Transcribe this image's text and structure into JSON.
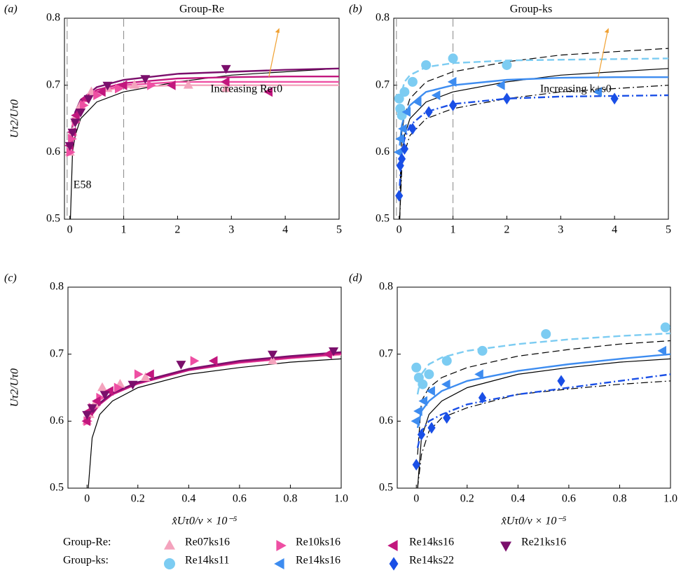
{
  "chart_data": [
    {
      "type": "scatter",
      "panel_label": "(a)",
      "title": "Group-Re",
      "ylabel": "Uτ2/Uτ0",
      "xlim": [
        -0.1,
        5
      ],
      "ylim": [
        0.5,
        0.8
      ],
      "xticks": [
        0,
        1,
        2,
        3,
        4,
        5
      ],
      "yticks": [
        0.5,
        0.6,
        0.7,
        0.8
      ],
      "vlines": [
        -0.05,
        1
      ],
      "series": [
        {
          "color": "#f4a3bd",
          "marker": "triangle-up",
          "x": [
            0,
            0.05,
            0.1,
            0.2,
            0.4,
            0.7,
            1.2,
            2.2,
            2.9
          ],
          "values": [
            0.6,
            0.63,
            0.65,
            0.67,
            0.69,
            0.695,
            0.7,
            0.7,
            0.695
          ]
        },
        {
          "color": "#ee4fa3",
          "marker": "triangle-right",
          "x": [
            0,
            0.03,
            0.1,
            0.25,
            0.5,
            0.9,
            1.5
          ],
          "values": [
            0.6,
            0.62,
            0.645,
            0.67,
            0.685,
            0.695,
            0.7
          ]
        },
        {
          "color": "#c2177e",
          "marker": "triangle-left",
          "x": [
            0,
            0.05,
            0.12,
            0.3,
            0.6,
            1.0,
            1.9,
            2.9,
            3.7
          ],
          "values": [
            0.61,
            0.63,
            0.655,
            0.68,
            0.69,
            0.7,
            0.7,
            0.705,
            0.69
          ]
        },
        {
          "color": "#7b0f6c",
          "marker": "triangle-down",
          "x": [
            0,
            0.05,
            0.1,
            0.2,
            0.35,
            0.7,
            1.4,
            2.9
          ],
          "values": [
            0.61,
            0.63,
            0.645,
            0.66,
            0.68,
            0.7,
            0.71,
            0.725
          ]
        }
      ],
      "curves": [
        {
          "color": "#000000",
          "dash": "solid",
          "x": [
            0.01,
            0.05,
            0.1,
            0.2,
            0.5,
            1,
            2,
            3,
            4,
            5
          ],
          "values": [
            0.5,
            0.6,
            0.625,
            0.65,
            0.675,
            0.69,
            0.705,
            0.715,
            0.72,
            0.725
          ]
        },
        {
          "color": "#f4a3bd",
          "dash": "solid",
          "x": [
            0.01,
            0.05,
            0.1,
            0.2,
            0.5,
            1,
            2,
            3,
            4,
            5
          ],
          "values": [
            0.61,
            0.64,
            0.655,
            0.67,
            0.69,
            0.697,
            0.7,
            0.7,
            0.7,
            0.7
          ]
        },
        {
          "color": "#ee4fa3",
          "dash": "solid",
          "x": [
            0.01,
            0.05,
            0.1,
            0.2,
            0.5,
            1,
            2,
            3,
            4,
            5
          ],
          "values": [
            0.61,
            0.64,
            0.655,
            0.672,
            0.69,
            0.7,
            0.705,
            0.705,
            0.705,
            0.705
          ]
        },
        {
          "color": "#c2177e",
          "dash": "solid",
          "x": [
            0.01,
            0.05,
            0.1,
            0.2,
            0.5,
            1,
            2,
            3,
            4,
            5
          ],
          "values": [
            0.61,
            0.64,
            0.657,
            0.675,
            0.693,
            0.703,
            0.71,
            0.712,
            0.713,
            0.713
          ]
        },
        {
          "color": "#7b0f6c",
          "dash": "solid",
          "x": [
            0.01,
            0.05,
            0.1,
            0.2,
            0.5,
            1,
            2,
            3,
            4,
            5
          ],
          "values": [
            0.61,
            0.64,
            0.66,
            0.678,
            0.697,
            0.708,
            0.717,
            0.72,
            0.723,
            0.725
          ]
        }
      ],
      "annotations": [
        {
          "text": "Increasing Reτ0",
          "color": "#f0a030"
        },
        {
          "text": "E58",
          "color": "#000000"
        }
      ]
    },
    {
      "type": "scatter",
      "panel_label": "(b)",
      "title": "Group-ks",
      "xlim": [
        -0.1,
        5
      ],
      "ylim": [
        0.5,
        0.8
      ],
      "xticks": [
        0,
        1,
        2,
        3,
        4,
        5
      ],
      "yticks": [
        0.5,
        0.6,
        0.7,
        0.8
      ],
      "vlines": [
        -0.05,
        1
      ],
      "series": [
        {
          "color": "#7cccf2",
          "marker": "circle",
          "x": [
            0,
            0.02,
            0.05,
            0.1,
            0.25,
            0.5,
            1.0,
            2.0
          ],
          "values": [
            0.68,
            0.665,
            0.655,
            0.69,
            0.705,
            0.73,
            0.74,
            0.73
          ]
        },
        {
          "color": "#3d8cf0",
          "marker": "triangle-left",
          "x": [
            0,
            0.03,
            0.08,
            0.15,
            0.35,
            0.7,
            1.0,
            1.9,
            3.7
          ],
          "values": [
            0.6,
            0.62,
            0.635,
            0.66,
            0.675,
            0.685,
            0.705,
            0.7,
            0.69
          ]
        },
        {
          "color": "#1a4fe6",
          "marker": "diamond",
          "x": [
            0,
            0.02,
            0.05,
            0.1,
            0.25,
            0.55,
            1.0,
            2.0,
            4.0
          ],
          "values": [
            0.535,
            0.58,
            0.59,
            0.605,
            0.635,
            0.66,
            0.67,
            0.68,
            0.68
          ]
        }
      ],
      "curves": [
        {
          "color": "#000000",
          "dash": "dashed",
          "x": [
            0.01,
            0.05,
            0.1,
            0.2,
            0.5,
            1,
            2,
            3,
            4,
            5
          ],
          "values": [
            0.53,
            0.63,
            0.655,
            0.68,
            0.705,
            0.72,
            0.735,
            0.745,
            0.75,
            0.755
          ]
        },
        {
          "color": "#000000",
          "dash": "solid",
          "x": [
            0.01,
            0.05,
            0.1,
            0.2,
            0.5,
            1,
            2,
            3,
            4,
            5
          ],
          "values": [
            0.5,
            0.6,
            0.625,
            0.65,
            0.675,
            0.69,
            0.705,
            0.715,
            0.72,
            0.725
          ]
        },
        {
          "color": "#000000",
          "dash": "dashdot",
          "x": [
            0.01,
            0.05,
            0.1,
            0.2,
            0.5,
            1,
            2,
            3,
            4,
            5
          ],
          "values": [
            0.5,
            0.575,
            0.6,
            0.625,
            0.65,
            0.665,
            0.68,
            0.69,
            0.695,
            0.7
          ]
        },
        {
          "color": "#7cccf2",
          "dash": "dashed",
          "x": [
            0.01,
            0.05,
            0.1,
            0.2,
            0.5,
            1,
            2,
            3,
            4,
            5
          ],
          "values": [
            0.66,
            0.69,
            0.705,
            0.715,
            0.727,
            0.733,
            0.737,
            0.738,
            0.739,
            0.74
          ]
        },
        {
          "color": "#3d8cf0",
          "dash": "solid",
          "x": [
            0.01,
            0.05,
            0.1,
            0.2,
            0.5,
            1,
            2,
            3,
            4,
            5
          ],
          "values": [
            0.61,
            0.64,
            0.655,
            0.67,
            0.69,
            0.7,
            0.708,
            0.711,
            0.712,
            0.712
          ]
        },
        {
          "color": "#1a4fe6",
          "dash": "dashdot",
          "x": [
            0.01,
            0.05,
            0.1,
            0.2,
            0.5,
            1,
            2,
            3,
            4,
            5
          ],
          "values": [
            0.55,
            0.6,
            0.62,
            0.64,
            0.66,
            0.672,
            0.68,
            0.683,
            0.684,
            0.685
          ]
        }
      ],
      "annotations": [
        {
          "text": "Increasing k+s0",
          "color": "#f0a030"
        }
      ]
    },
    {
      "type": "scatter",
      "panel_label": "(c)",
      "ylabel": "Uτ2/Uτ0",
      "xlabel": "x̂Uτ0/ν × 10⁻⁵",
      "xlim": [
        -0.075,
        1
      ],
      "ylim": [
        0.5,
        0.8
      ],
      "xticks": [
        0,
        0.2,
        0.4,
        0.6,
        0.8,
        {
          "value": 1,
          "label": "1.0"
        }
      ],
      "yticks": [
        0.5,
        0.6,
        0.7,
        0.8
      ],
      "series": [
        {
          "color": "#f4a3bd",
          "marker": "triangle-up",
          "x": [
            0,
            0.01,
            0.03,
            0.06,
            0.13,
            0.23,
            0.73
          ],
          "values": [
            0.6,
            0.61,
            0.625,
            0.65,
            0.655,
            0.665,
            0.69
          ]
        },
        {
          "color": "#ee4fa3",
          "marker": "triangle-right",
          "x": [
            0,
            0.02,
            0.05,
            0.12,
            0.2,
            0.42
          ],
          "values": [
            0.6,
            0.62,
            0.635,
            0.65,
            0.67,
            0.69
          ]
        },
        {
          "color": "#c2177e",
          "marker": "triangle-left",
          "x": [
            0,
            0.01,
            0.04,
            0.09,
            0.25,
            0.5,
            0.95
          ],
          "values": [
            0.6,
            0.615,
            0.63,
            0.645,
            0.67,
            0.69,
            0.7
          ]
        },
        {
          "color": "#7b0f6c",
          "marker": "triangle-down",
          "x": [
            0,
            0.02,
            0.07,
            0.18,
            0.37,
            0.73,
            0.97
          ],
          "values": [
            0.61,
            0.62,
            0.64,
            0.655,
            0.685,
            0.7,
            0.705
          ]
        }
      ],
      "curves": [
        {
          "color": "#000000",
          "dash": "solid",
          "x": [
            0.005,
            0.02,
            0.05,
            0.1,
            0.2,
            0.4,
            0.6,
            0.8,
            1.0
          ],
          "values": [
            0.5,
            0.575,
            0.61,
            0.63,
            0.65,
            0.67,
            0.68,
            0.688,
            0.693
          ]
        },
        {
          "color": "#f4a3bd",
          "dash": "solid",
          "x": [
            0.005,
            0.02,
            0.05,
            0.1,
            0.2,
            0.4,
            0.6,
            0.8,
            1.0
          ],
          "values": [
            0.6,
            0.612,
            0.627,
            0.642,
            0.658,
            0.677,
            0.687,
            0.694,
            0.699
          ]
        },
        {
          "color": "#ee4fa3",
          "dash": "solid",
          "x": [
            0.005,
            0.02,
            0.05,
            0.1,
            0.2,
            0.4,
            0.6,
            0.8,
            1.0
          ],
          "values": [
            0.6,
            0.611,
            0.626,
            0.641,
            0.657,
            0.676,
            0.687,
            0.694,
            0.7
          ]
        },
        {
          "color": "#c2177e",
          "dash": "solid",
          "x": [
            0.005,
            0.02,
            0.05,
            0.1,
            0.2,
            0.4,
            0.6,
            0.8,
            1.0
          ],
          "values": [
            0.6,
            0.61,
            0.625,
            0.64,
            0.656,
            0.676,
            0.688,
            0.695,
            0.701
          ]
        },
        {
          "color": "#7b0f6c",
          "dash": "solid",
          "x": [
            0.005,
            0.02,
            0.05,
            0.1,
            0.2,
            0.4,
            0.6,
            0.8,
            1.0
          ],
          "values": [
            0.605,
            0.612,
            0.627,
            0.642,
            0.658,
            0.678,
            0.69,
            0.697,
            0.703
          ]
        }
      ]
    },
    {
      "type": "scatter",
      "panel_label": "(d)",
      "xlabel": "x̂Uτ0/ν × 10⁻⁵",
      "xlim": [
        -0.075,
        1
      ],
      "ylim": [
        0.5,
        0.8
      ],
      "xticks": [
        0,
        0.2,
        0.4,
        0.6,
        0.8,
        {
          "value": 1,
          "label": "1.0"
        }
      ],
      "yticks": [
        0.5,
        0.6,
        0.7,
        0.8
      ],
      "series": [
        {
          "color": "#7cccf2",
          "marker": "circle",
          "x": [
            0,
            0.01,
            0.025,
            0.05,
            0.12,
            0.26,
            0.51,
            0.98
          ],
          "values": [
            0.68,
            0.665,
            0.655,
            0.67,
            0.69,
            0.705,
            0.73,
            0.74
          ]
        },
        {
          "color": "#3d8cf0",
          "marker": "triangle-left",
          "x": [
            0,
            0.01,
            0.03,
            0.06,
            0.12,
            0.25,
            0.97
          ],
          "values": [
            0.6,
            0.615,
            0.63,
            0.645,
            0.655,
            0.67,
            0.705
          ]
        },
        {
          "color": "#1a4fe6",
          "marker": "diamond",
          "x": [
            0,
            0.02,
            0.06,
            0.12,
            0.26,
            0.57
          ],
          "values": [
            0.535,
            0.58,
            0.59,
            0.605,
            0.635,
            0.66
          ]
        }
      ],
      "curves": [
        {
          "color": "#000000",
          "dash": "dashed",
          "x": [
            0.005,
            0.02,
            0.05,
            0.1,
            0.2,
            0.4,
            0.6,
            0.8,
            1.0
          ],
          "values": [
            0.55,
            0.63,
            0.65,
            0.665,
            0.68,
            0.697,
            0.707,
            0.715,
            0.72
          ]
        },
        {
          "color": "#000000",
          "dash": "solid",
          "x": [
            0.005,
            0.02,
            0.05,
            0.1,
            0.2,
            0.4,
            0.6,
            0.8,
            1.0
          ],
          "values": [
            0.5,
            0.575,
            0.61,
            0.63,
            0.65,
            0.67,
            0.68,
            0.688,
            0.693
          ]
        },
        {
          "color": "#000000",
          "dash": "dashdot",
          "x": [
            0.005,
            0.02,
            0.05,
            0.1,
            0.2,
            0.4,
            0.6,
            0.8,
            1.0
          ],
          "values": [
            0.5,
            0.55,
            0.585,
            0.605,
            0.62,
            0.64,
            0.648,
            0.655,
            0.66
          ]
        },
        {
          "color": "#7cccf2",
          "dash": "dashed",
          "x": [
            0.005,
            0.02,
            0.05,
            0.1,
            0.2,
            0.4,
            0.6,
            0.8,
            1.0
          ],
          "values": [
            0.64,
            0.67,
            0.685,
            0.695,
            0.705,
            0.715,
            0.722,
            0.727,
            0.731
          ]
        },
        {
          "color": "#3d8cf0",
          "dash": "solid",
          "x": [
            0.005,
            0.02,
            0.05,
            0.1,
            0.2,
            0.4,
            0.6,
            0.8,
            1.0
          ],
          "values": [
            0.59,
            0.615,
            0.63,
            0.645,
            0.66,
            0.675,
            0.685,
            0.693,
            0.7
          ]
        },
        {
          "color": "#1a4fe6",
          "dash": "dashdot",
          "x": [
            0.005,
            0.02,
            0.05,
            0.1,
            0.2,
            0.4,
            0.6,
            0.8,
            1.0
          ],
          "values": [
            0.56,
            0.585,
            0.6,
            0.61,
            0.625,
            0.64,
            0.65,
            0.66,
            0.67
          ]
        }
      ]
    }
  ],
  "legend": {
    "groups": [
      {
        "label": "Group-Re:",
        "entries": [
          {
            "name": "Re07ks16",
            "color": "#f4a3bd",
            "marker": "triangle-up"
          },
          {
            "name": "Re10ks16",
            "color": "#ee4fa3",
            "marker": "triangle-right"
          },
          {
            "name": "Re14ks16",
            "color": "#c2177e",
            "marker": "triangle-left"
          },
          {
            "name": "Re21ks16",
            "color": "#7b0f6c",
            "marker": "triangle-down"
          }
        ]
      },
      {
        "label": "Group-ks:",
        "entries": [
          {
            "name": "Re14ks11",
            "color": "#7cccf2",
            "marker": "circle"
          },
          {
            "name": "Re14ks16",
            "color": "#3d8cf0",
            "marker": "triangle-left"
          },
          {
            "name": "Re14ks22",
            "color": "#1a4fe6",
            "marker": "diamond"
          }
        ]
      }
    ]
  }
}
